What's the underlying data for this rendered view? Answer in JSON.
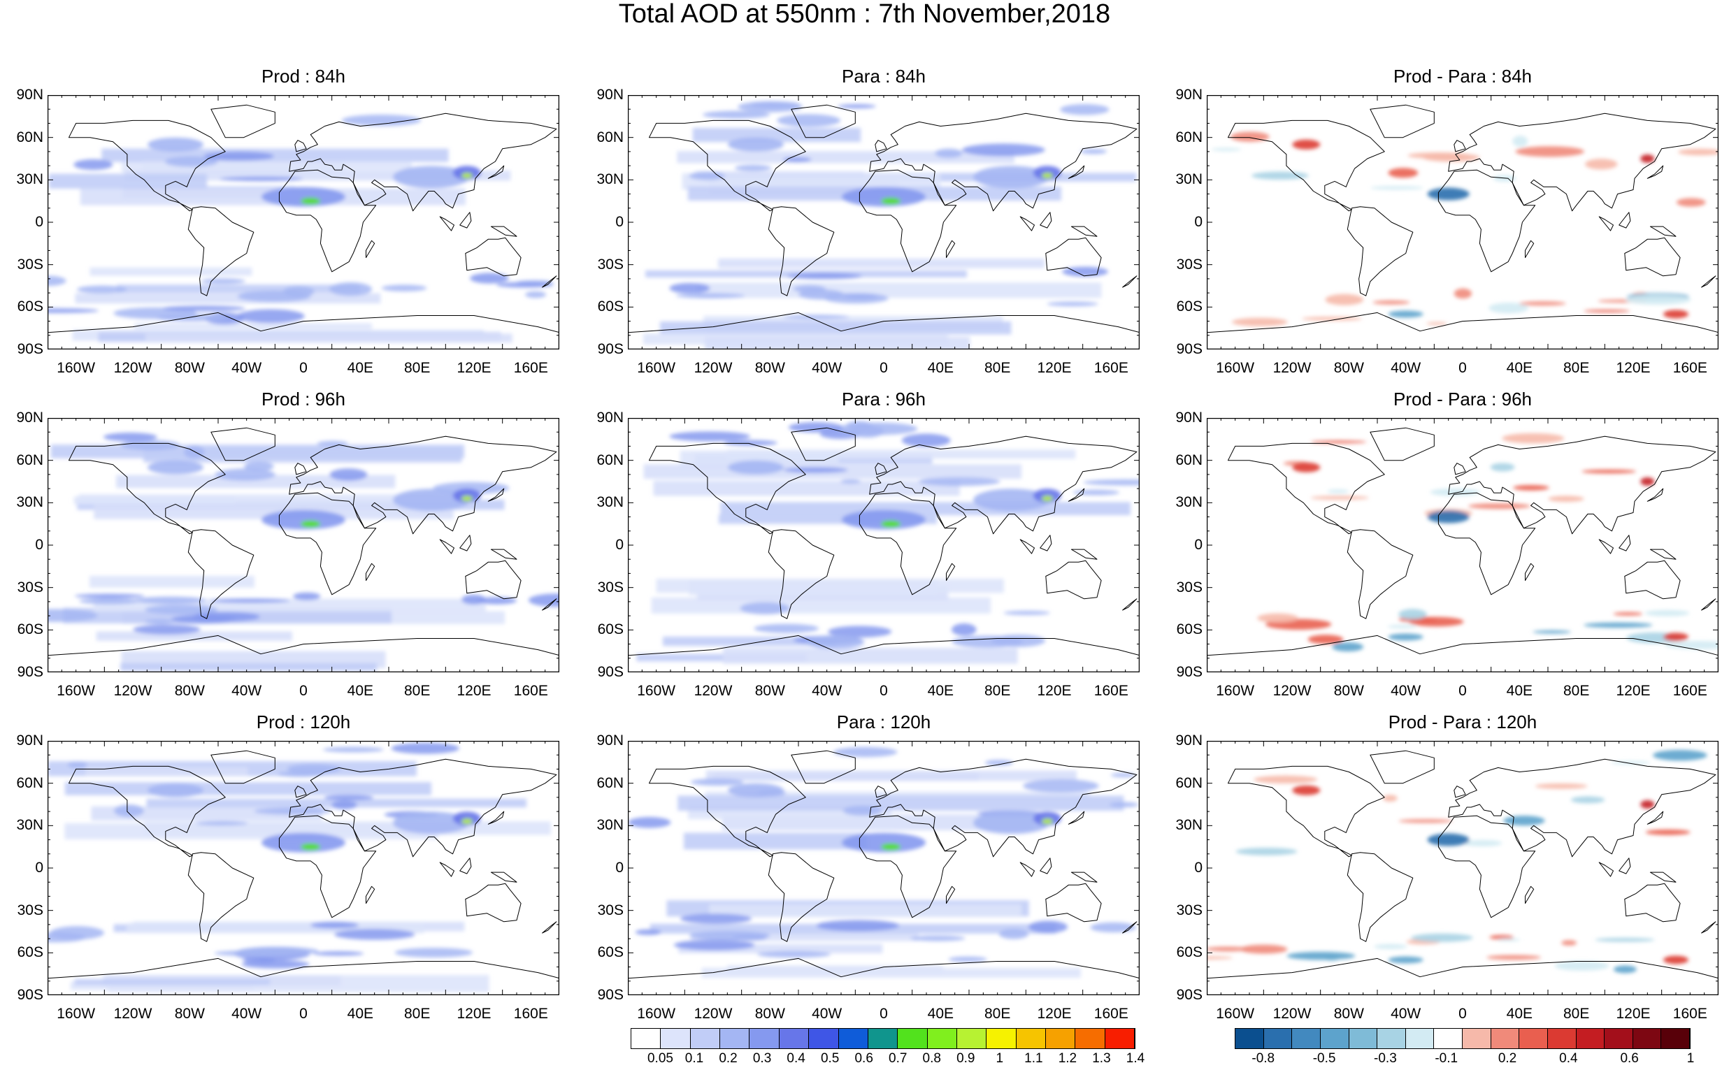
{
  "title": "Total AOD at 550nm : 7th November,2018",
  "panels": [
    {
      "title": "Prod : 84h",
      "kind": "aod"
    },
    {
      "title": "Para : 84h",
      "kind": "aod"
    },
    {
      "title": "Prod - Para : 84h",
      "kind": "diff"
    },
    {
      "title": "Prod : 96h",
      "kind": "aod"
    },
    {
      "title": "Para : 96h",
      "kind": "aod"
    },
    {
      "title": "Prod - Para : 96h",
      "kind": "diff"
    },
    {
      "title": "Prod : 120h",
      "kind": "aod"
    },
    {
      "title": "Para : 120h",
      "kind": "aod"
    },
    {
      "title": "Prod - Para : 120h",
      "kind": "diff"
    }
  ],
  "lat_labels": [
    "90N",
    "60N",
    "30N",
    "0",
    "30S",
    "60S",
    "90S"
  ],
  "lon_labels": [
    "160W",
    "120W",
    "80W",
    "40W",
    "0",
    "40E",
    "80E",
    "120E",
    "160E"
  ],
  "aod_colorbar": {
    "colors": [
      "#ffffff",
      "#dde4fb",
      "#c1cdf7",
      "#a4b6f3",
      "#8599ef",
      "#6776e9",
      "#3f56e6",
      "#0f5cd9",
      "#10958d",
      "#52e21d",
      "#80ef1e",
      "#b7f232",
      "#f6f200",
      "#f6c400",
      "#f6a100",
      "#f66d00",
      "#f81e00"
    ],
    "labels": [
      "0.05",
      "0.1",
      "0.2",
      "0.3",
      "0.4",
      "0.5",
      "0.6",
      "0.7",
      "0.8",
      "0.9",
      "1",
      "1.1",
      "1.2",
      "1.3",
      "1.4"
    ]
  },
  "diff_colorbar": {
    "colors": [
      "#0b4f8f",
      "#2a6fae",
      "#4289bf",
      "#5da3cc",
      "#7fbbd7",
      "#a8d3e4",
      "#d3ebf3",
      "#ffffff",
      "#f6b9aa",
      "#f08a7a",
      "#e95f4f",
      "#db3a32",
      "#c41d22",
      "#a30f1b",
      "#7d0712",
      "#580009"
    ],
    "labels": [
      "-0.8",
      "-0.5",
      "-0.3",
      "-0.1",
      "0.2",
      "0.4",
      "0.6",
      "1"
    ]
  }
}
